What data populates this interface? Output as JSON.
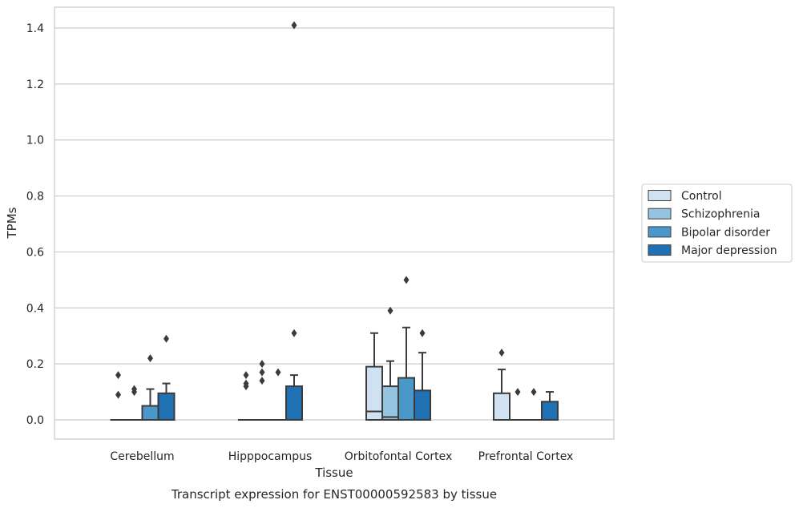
{
  "chart_data": {
    "type": "boxplot",
    "title": "Transcript expression for ENST00000592583 by tissue",
    "xlabel": "Tissue",
    "ylabel": "TPMs",
    "ylim": [
      -0.07,
      1.48
    ],
    "yticks": [
      0.0,
      0.2,
      0.4,
      0.6,
      0.8,
      1.0,
      1.2,
      1.4
    ],
    "ytick_labels": [
      "0.0",
      "0.2",
      "0.4",
      "0.6",
      "0.8",
      "1.0",
      "1.2",
      "1.4"
    ],
    "grid": true,
    "legend_position": "right",
    "categories": [
      "Cerebellum",
      "Hipppocampus",
      "Orbitofontal Cortex",
      "Prefrontal Cortex"
    ],
    "series": [
      {
        "name": "Control",
        "color": "#d0e1f2",
        "boxes": [
          {
            "q1": 0,
            "median": 0,
            "q3": 0,
            "whisker_low": 0,
            "whisker_high": 0,
            "outliers": [
              0.16,
              0.09
            ]
          },
          {
            "q1": 0,
            "median": 0,
            "q3": 0,
            "whisker_low": 0,
            "whisker_high": 0,
            "outliers": [
              0.16,
              0.13,
              0.12
            ]
          },
          {
            "q1": 0,
            "median": 0.03,
            "q3": 0.19,
            "whisker_low": 0,
            "whisker_high": 0.31,
            "outliers": []
          },
          {
            "q1": 0,
            "median": 0,
            "q3": 0.095,
            "whisker_low": 0,
            "whisker_high": 0.18,
            "outliers": [
              0.24
            ]
          }
        ]
      },
      {
        "name": "Schizophrenia",
        "color": "#94c4df",
        "boxes": [
          {
            "q1": 0,
            "median": 0,
            "q3": 0,
            "whisker_low": 0,
            "whisker_high": 0,
            "outliers": [
              0.11,
              0.1
            ]
          },
          {
            "q1": 0,
            "median": 0,
            "q3": 0,
            "whisker_low": 0,
            "whisker_high": 0,
            "outliers": [
              0.2,
              0.17,
              0.14
            ]
          },
          {
            "q1": 0,
            "median": 0.01,
            "q3": 0.12,
            "whisker_low": 0,
            "whisker_high": 0.21,
            "outliers": [
              0.39
            ]
          },
          {
            "q1": 0,
            "median": 0,
            "q3": 0,
            "whisker_low": 0,
            "whisker_high": 0,
            "outliers": [
              0.1
            ]
          }
        ]
      },
      {
        "name": "Bipolar disorder",
        "color": "#4a98c9",
        "boxes": [
          {
            "q1": 0,
            "median": 0,
            "q3": 0.05,
            "whisker_low": 0,
            "whisker_high": 0.11,
            "outliers": [
              0.22
            ]
          },
          {
            "q1": 0,
            "median": 0,
            "q3": 0,
            "whisker_low": 0,
            "whisker_high": 0,
            "outliers": [
              0.17
            ]
          },
          {
            "q1": 0,
            "median": 0,
            "q3": 0.15,
            "whisker_low": 0,
            "whisker_high": 0.33,
            "outliers": [
              0.5
            ]
          },
          {
            "q1": 0,
            "median": 0,
            "q3": 0,
            "whisker_low": 0,
            "whisker_high": 0,
            "outliers": [
              0.1
            ]
          }
        ]
      },
      {
        "name": "Major depression",
        "color": "#2070b4",
        "boxes": [
          {
            "q1": 0,
            "median": 0,
            "q3": 0.095,
            "whisker_low": 0,
            "whisker_high": 0.13,
            "outliers": [
              0.29
            ]
          },
          {
            "q1": 0,
            "median": 0,
            "q3": 0.12,
            "whisker_low": 0,
            "whisker_high": 0.16,
            "outliers": [
              0.31,
              1.41
            ]
          },
          {
            "q1": 0,
            "median": 0,
            "q3": 0.105,
            "whisker_low": 0,
            "whisker_high": 0.24,
            "outliers": [
              0.31
            ]
          },
          {
            "q1": 0,
            "median": 0,
            "q3": 0.065,
            "whisker_low": 0,
            "whisker_high": 0.1,
            "outliers": []
          }
        ]
      }
    ]
  }
}
